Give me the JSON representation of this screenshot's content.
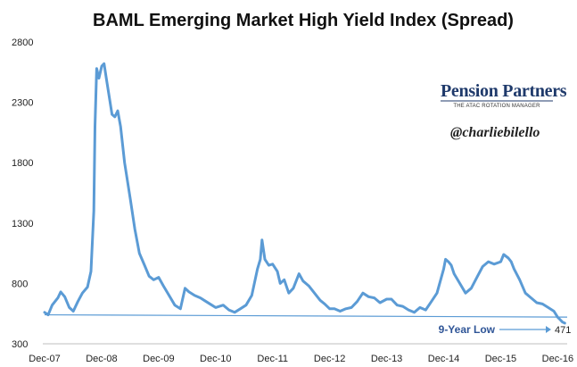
{
  "chart_data": {
    "type": "line",
    "title": "BAML Emerging Market High Yield Index (Spread)",
    "xlabel": "",
    "ylabel": "",
    "ylim": [
      300,
      2800
    ],
    "y_ticks": [
      300,
      800,
      1300,
      1800,
      2300,
      2800
    ],
    "y_tick_labels": [
      "300",
      "800",
      "1300",
      "1800",
      "2300",
      "2800"
    ],
    "x_tick_labels": [
      "Dec-07",
      "Dec-08",
      "Dec-09",
      "Dec-10",
      "Dec-11",
      "Dec-12",
      "Dec-13",
      "Dec-14",
      "Dec-15",
      "Dec-16"
    ],
    "x_ticks": [
      2007.917,
      2008.917,
      2009.917,
      2010.917,
      2011.917,
      2012.917,
      2013.917,
      2014.917,
      2015.917,
      2016.917
    ],
    "xlim": [
      2007.917,
      2017.083
    ],
    "grid": false,
    "line_color": "#5b9bd5",
    "series": [
      {
        "values": [
          [
            2007.917,
            560
          ],
          [
            2007.98,
            540
          ],
          [
            2008.05,
            620
          ],
          [
            2008.15,
            680
          ],
          [
            2008.2,
            730
          ],
          [
            2008.27,
            690
          ],
          [
            2008.35,
            600
          ],
          [
            2008.42,
            570
          ],
          [
            2008.5,
            650
          ],
          [
            2008.58,
            720
          ],
          [
            2008.67,
            770
          ],
          [
            2008.73,
            900
          ],
          [
            2008.78,
            1400
          ],
          [
            2008.8,
            2100
          ],
          [
            2008.83,
            2580
          ],
          [
            2008.87,
            2500
          ],
          [
            2008.92,
            2600
          ],
          [
            2008.96,
            2620
          ],
          [
            2009.0,
            2500
          ],
          [
            2009.05,
            2350
          ],
          [
            2009.1,
            2200
          ],
          [
            2009.15,
            2180
          ],
          [
            2009.2,
            2230
          ],
          [
            2009.25,
            2100
          ],
          [
            2009.32,
            1800
          ],
          [
            2009.42,
            1500
          ],
          [
            2009.5,
            1250
          ],
          [
            2009.58,
            1050
          ],
          [
            2009.67,
            950
          ],
          [
            2009.75,
            860
          ],
          [
            2009.83,
            830
          ],
          [
            2009.917,
            850
          ],
          [
            2010.0,
            780
          ],
          [
            2010.1,
            700
          ],
          [
            2010.2,
            620
          ],
          [
            2010.3,
            590
          ],
          [
            2010.38,
            760
          ],
          [
            2010.45,
            730
          ],
          [
            2010.55,
            700
          ],
          [
            2010.65,
            680
          ],
          [
            2010.75,
            650
          ],
          [
            2010.85,
            620
          ],
          [
            2010.917,
            600
          ],
          [
            2011.05,
            620
          ],
          [
            2011.15,
            580
          ],
          [
            2011.25,
            560
          ],
          [
            2011.35,
            590
          ],
          [
            2011.45,
            620
          ],
          [
            2011.55,
            700
          ],
          [
            2011.65,
            920
          ],
          [
            2011.7,
            1000
          ],
          [
            2011.73,
            1160
          ],
          [
            2011.78,
            1000
          ],
          [
            2011.85,
            950
          ],
          [
            2011.917,
            960
          ],
          [
            2012.0,
            900
          ],
          [
            2012.05,
            800
          ],
          [
            2012.12,
            830
          ],
          [
            2012.2,
            720
          ],
          [
            2012.28,
            760
          ],
          [
            2012.38,
            880
          ],
          [
            2012.45,
            820
          ],
          [
            2012.55,
            780
          ],
          [
            2012.65,
            720
          ],
          [
            2012.75,
            660
          ],
          [
            2012.83,
            630
          ],
          [
            2012.917,
            590
          ],
          [
            2013.0,
            590
          ],
          [
            2013.1,
            570
          ],
          [
            2013.2,
            590
          ],
          [
            2013.3,
            600
          ],
          [
            2013.4,
            650
          ],
          [
            2013.5,
            720
          ],
          [
            2013.6,
            690
          ],
          [
            2013.7,
            680
          ],
          [
            2013.8,
            640
          ],
          [
            2013.917,
            670
          ],
          [
            2014.0,
            670
          ],
          [
            2014.1,
            620
          ],
          [
            2014.2,
            610
          ],
          [
            2014.3,
            580
          ],
          [
            2014.4,
            560
          ],
          [
            2014.5,
            600
          ],
          [
            2014.6,
            580
          ],
          [
            2014.7,
            650
          ],
          [
            2014.8,
            720
          ],
          [
            2014.917,
            920
          ],
          [
            2014.95,
            1000
          ],
          [
            2015.0,
            980
          ],
          [
            2015.05,
            950
          ],
          [
            2015.1,
            880
          ],
          [
            2015.2,
            800
          ],
          [
            2015.3,
            720
          ],
          [
            2015.4,
            760
          ],
          [
            2015.5,
            850
          ],
          [
            2015.6,
            940
          ],
          [
            2015.7,
            980
          ],
          [
            2015.8,
            960
          ],
          [
            2015.917,
            980
          ],
          [
            2015.97,
            1040
          ],
          [
            2016.05,
            1010
          ],
          [
            2016.1,
            980
          ],
          [
            2016.15,
            920
          ],
          [
            2016.25,
            830
          ],
          [
            2016.35,
            720
          ],
          [
            2016.45,
            680
          ],
          [
            2016.55,
            640
          ],
          [
            2016.65,
            630
          ],
          [
            2016.75,
            600
          ],
          [
            2016.85,
            570
          ],
          [
            2016.917,
            520
          ],
          [
            2016.96,
            500
          ],
          [
            2017.0,
            480
          ],
          [
            2017.04,
            471
          ]
        ]
      }
    ],
    "annotations": {
      "low_label": "9-Year Low",
      "low_value": "471",
      "reference_level": 471
    }
  },
  "branding": {
    "logo_main": "Pension Partners",
    "logo_sub": "THE ATAC ROTATION MANAGER",
    "handle": "@charliebilello"
  },
  "colors": {
    "line": "#5b9bd5",
    "reference_line": "#5b9bd5",
    "annotation_text": "#2f5597",
    "brand": "#1f3a6b",
    "axis": "#bfbfbf"
  }
}
